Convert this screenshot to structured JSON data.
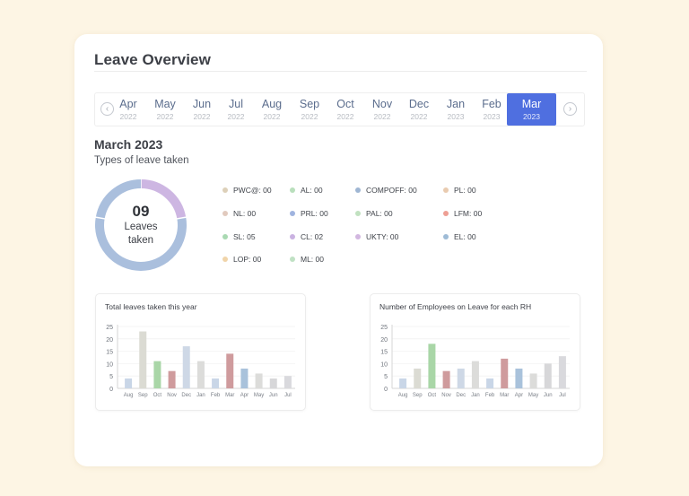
{
  "header": {
    "title": "Leave Overview"
  },
  "month_nav": {
    "prev_icon": "chevron-left-circle-icon",
    "next_icon": "chevron-right-circle-icon",
    "prev_glyph": "‹",
    "next_glyph": "›",
    "months": [
      {
        "month": "Apr",
        "year": "2022",
        "active": false
      },
      {
        "month": "May",
        "year": "2022",
        "active": false
      },
      {
        "month": "Jun",
        "year": "2022",
        "active": false
      },
      {
        "month": "Jul",
        "year": "2022",
        "active": false
      },
      {
        "month": "Aug",
        "year": "2022",
        "active": false
      },
      {
        "month": "Sep",
        "year": "2022",
        "active": false
      },
      {
        "month": "Oct",
        "year": "2022",
        "active": false
      },
      {
        "month": "Nov",
        "year": "2022",
        "active": false
      },
      {
        "month": "Dec",
        "year": "2022",
        "active": false
      },
      {
        "month": "Jan",
        "year": "2023",
        "active": false
      },
      {
        "month": "Feb",
        "year": "2023",
        "active": false
      },
      {
        "month": "Mar",
        "year": "2023",
        "active": true
      }
    ],
    "active_color": "#4f6fe0"
  },
  "summary": {
    "period": "March 2023",
    "caption": "Types of leave taken",
    "total": "09",
    "total_label": "Leaves taken",
    "donut_segments": [
      {
        "value": 2,
        "color": "#cdb6e2"
      },
      {
        "value": 5,
        "color": "#aabfdd"
      },
      {
        "value": 2,
        "color": "#aabfdd"
      }
    ]
  },
  "legend": [
    {
      "label": "PWC@: 00",
      "color": "#ddd0b9"
    },
    {
      "label": "AL: 00",
      "color": "#b9dfbc"
    },
    {
      "label": "COMPOFF: 00",
      "color": "#9fb6d3"
    },
    {
      "label": "PL: 00",
      "color": "#e9cbb0"
    },
    {
      "label": "NL: 00",
      "color": "#e1cabe"
    },
    {
      "label": "PRL: 00",
      "color": "#a0b4df"
    },
    {
      "label": "PAL: 00",
      "color": "#c1e1c0"
    },
    {
      "label": "LFM: 00",
      "color": "#ee9f94"
    },
    {
      "label": "SL: 05",
      "color": "#a9d9b2"
    },
    {
      "label": "CL: 02",
      "color": "#cab2e1"
    },
    {
      "label": "UKTY: 00",
      "color": "#d2b7e0"
    },
    {
      "label": "EL: 00",
      "color": "#9ebbd6"
    },
    {
      "label": "LOP: 00",
      "color": "#f0d4a9"
    },
    {
      "label": "ML: 00",
      "color": "#c0e1c4"
    }
  ],
  "chart_data": [
    {
      "type": "bar",
      "title": "Total leaves taken this year",
      "categories": [
        "Aug",
        "Sep",
        "Oct",
        "Nov",
        "Dec",
        "Jan",
        "Feb",
        "Mar",
        "Apr",
        "May",
        "Jun",
        "Jul"
      ],
      "values": [
        4,
        23,
        11,
        7,
        17,
        11,
        4,
        14,
        8,
        6,
        4,
        5
      ],
      "colors": [
        "#c9d6e7",
        "#dbdbd3",
        "#a9d6a7",
        "#cf9b9d",
        "#ced8e6",
        "#dcdcda",
        "#c9d6e7",
        "#cf9b9d",
        "#a9c2db",
        "#dcdcda",
        "#d7d7d9",
        "#d9d9dd"
      ],
      "xlabel": "",
      "ylabel": "",
      "yticks": [
        0,
        5,
        10,
        15,
        20,
        25
      ],
      "ylim": [
        0,
        25
      ],
      "grid": true
    },
    {
      "type": "bar",
      "title": "Number of Employees on Leave for each RH",
      "categories": [
        "Aug",
        "Sep",
        "Oct",
        "Nov",
        "Dec",
        "Jan",
        "Feb",
        "Mar",
        "Apr",
        "May",
        "Jun",
        "Jul"
      ],
      "values": [
        4,
        8,
        18,
        7,
        8,
        11,
        4,
        12,
        8,
        6,
        10,
        13
      ],
      "colors": [
        "#c9d6e7",
        "#dbdbd3",
        "#a9d6a7",
        "#cf9b9d",
        "#ced8e6",
        "#dcdcda",
        "#c9d6e7",
        "#cf9b9d",
        "#a9c2db",
        "#dcdcda",
        "#d7d7d9",
        "#d9d9dd"
      ],
      "xlabel": "",
      "ylabel": "",
      "yticks": [
        0,
        5,
        10,
        15,
        20,
        25
      ],
      "ylim": [
        0,
        25
      ],
      "grid": true
    }
  ]
}
